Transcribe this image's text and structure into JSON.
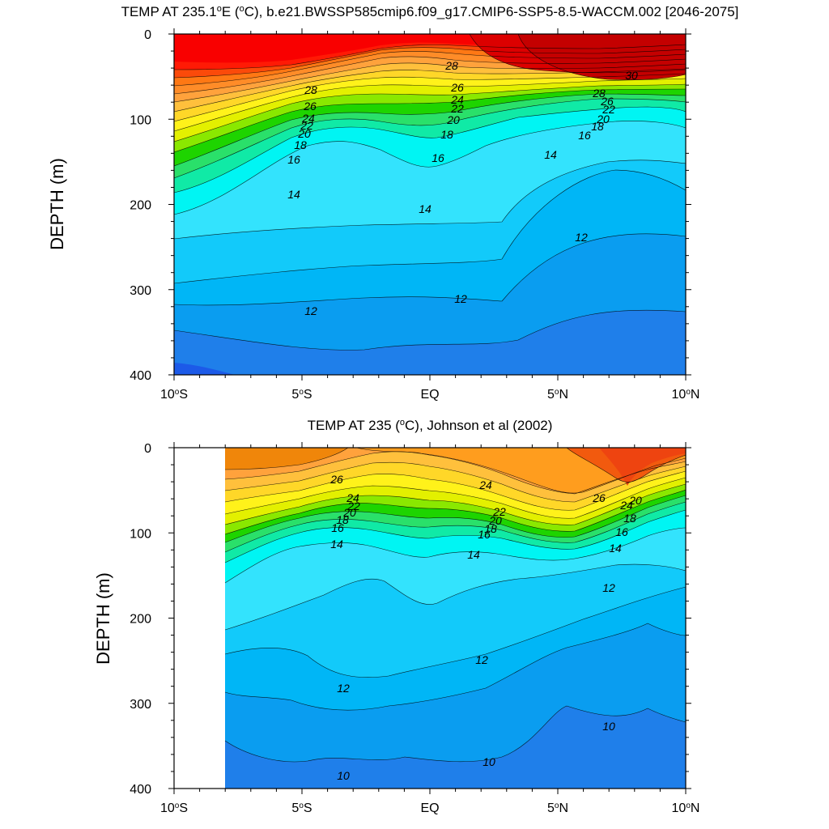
{
  "chart_data": [
    {
      "type": "contour",
      "title": "TEMP AT 235.1°E (°C), b.e21.BWSSP585cmip6.f09_g17.CMIP6-SSP5-8.5-WACCM.002 [2046-2075]",
      "title_parts": {
        "pre": "TEMP AT 235.1",
        "deg": "o",
        "post": "E (",
        "deg2": "o",
        "post2": "C), b.e21.BWSSP585cmip6.f09_g17.CMIP6-SSP5-8.5-WACCM.002 [2046-2075]"
      },
      "ylabel": "DEPTH (m)",
      "xlabel": "",
      "x_ticks": [
        {
          "value": -10,
          "label": "10°S"
        },
        {
          "value": -5,
          "label": "5°S"
        },
        {
          "value": 0,
          "label": "EQ"
        },
        {
          "value": 5,
          "label": "5°N"
        },
        {
          "value": 10,
          "label": "10°N"
        }
      ],
      "y_ticks": [
        0,
        100,
        200,
        300,
        400
      ],
      "xlim": [
        -10,
        10
      ],
      "ylim": [
        0,
        400
      ],
      "y_inverted": true,
      "data_x_range": [
        -10,
        10
      ],
      "levels": [
        8,
        9,
        10,
        11,
        12,
        13,
        14,
        15,
        16,
        17,
        18,
        19,
        20,
        21,
        22,
        23,
        24,
        25,
        26,
        27,
        28,
        29,
        30,
        31
      ],
      "isotherm_depths_m": {
        "x": [
          -10,
          -8,
          -6,
          -4,
          -2,
          0,
          2,
          4,
          6,
          7.5,
          10
        ],
        "26": [
          78,
          80,
          82,
          80,
          70,
          58,
          70,
          80,
          80,
          80,
          75
        ],
        "24": [
          100,
          95,
          90,
          88,
          78,
          68,
          78,
          85,
          84,
          84,
          80
        ],
        "22": [
          110,
          105,
          98,
          95,
          86,
          80,
          86,
          90,
          88,
          88,
          85
        ],
        "20": [
          125,
          118,
          108,
          100,
          94,
          92,
          94,
          95,
          93,
          93,
          90
        ],
        "18": [
          150,
          135,
          120,
          110,
          102,
          104,
          103,
          103,
          102,
          102,
          98
        ],
        "16": [
          180,
          165,
          145,
          135,
          140,
          155,
          135,
          125,
          115,
          110,
          112
        ],
        "14": [
          230,
          215,
          185,
          175,
          195,
          200,
          185,
          165,
          145,
          140,
          145
        ],
        "12": [
          320,
          312,
          310,
          305,
          305,
          300,
          305,
          310,
          250,
          215,
          230
        ]
      },
      "contour_labels": [
        "28",
        "26",
        "24",
        "22",
        "20",
        "18",
        "16",
        "14",
        "12",
        "30"
      ]
    },
    {
      "type": "contour",
      "title": "TEMP AT 235 (°C), Johnson et al (2002)",
      "title_parts": {
        "pre": "TEMP AT 235 (",
        "deg": "o",
        "post": "C), Johnson et al (2002)",
        "deg2": "",
        "post2": ""
      },
      "ylabel": "DEPTH (m)",
      "xlabel": "",
      "x_ticks": [
        {
          "value": -10,
          "label": "10°S"
        },
        {
          "value": -5,
          "label": "5°S"
        },
        {
          "value": 0,
          "label": "EQ"
        },
        {
          "value": 5,
          "label": "5°N"
        },
        {
          "value": 10,
          "label": "10°N"
        }
      ],
      "y_ticks": [
        0,
        100,
        200,
        300,
        400
      ],
      "xlim": [
        -10,
        10
      ],
      "ylim": [
        0,
        400
      ],
      "y_inverted": true,
      "data_x_range": [
        -8,
        10
      ],
      "levels": [
        8,
        9,
        10,
        11,
        12,
        13,
        14,
        15,
        16,
        17,
        18,
        19,
        20,
        21,
        22,
        23,
        24,
        25,
        26,
        27,
        28
      ],
      "isotherm_depths_m": {
        "x": [
          -8,
          -6,
          -4,
          -2,
          0,
          2,
          4,
          6,
          8,
          10
        ],
        "24": [
          80,
          72,
          62,
          52,
          40,
          52,
          65,
          75,
          60,
          45
        ],
        "22": [
          88,
          80,
          70,
          60,
          52,
          62,
          78,
          88,
          70,
          52
        ],
        "20": [
          98,
          90,
          80,
          72,
          65,
          78,
          92,
          100,
          78,
          58
        ],
        "18": [
          110,
          100,
          88,
          80,
          78,
          90,
          105,
          108,
          85,
          65
        ],
        "16": [
          130,
          115,
          98,
          92,
          95,
          105,
          118,
          118,
          92,
          72
        ],
        "14": [
          160,
          140,
          118,
          110,
          125,
          130,
          130,
          125,
          100,
          80
        ],
        "12": [
          250,
          245,
          285,
          280,
          270,
          258,
          235,
          200,
          185,
          160
        ],
        "10": [
          350,
          380,
          385,
          375,
          368,
          370,
          350,
          300,
          320,
          325
        ]
      },
      "contour_labels": [
        "26",
        "24",
        "22",
        "20",
        "18",
        "16",
        "14",
        "12",
        "10"
      ]
    }
  ]
}
